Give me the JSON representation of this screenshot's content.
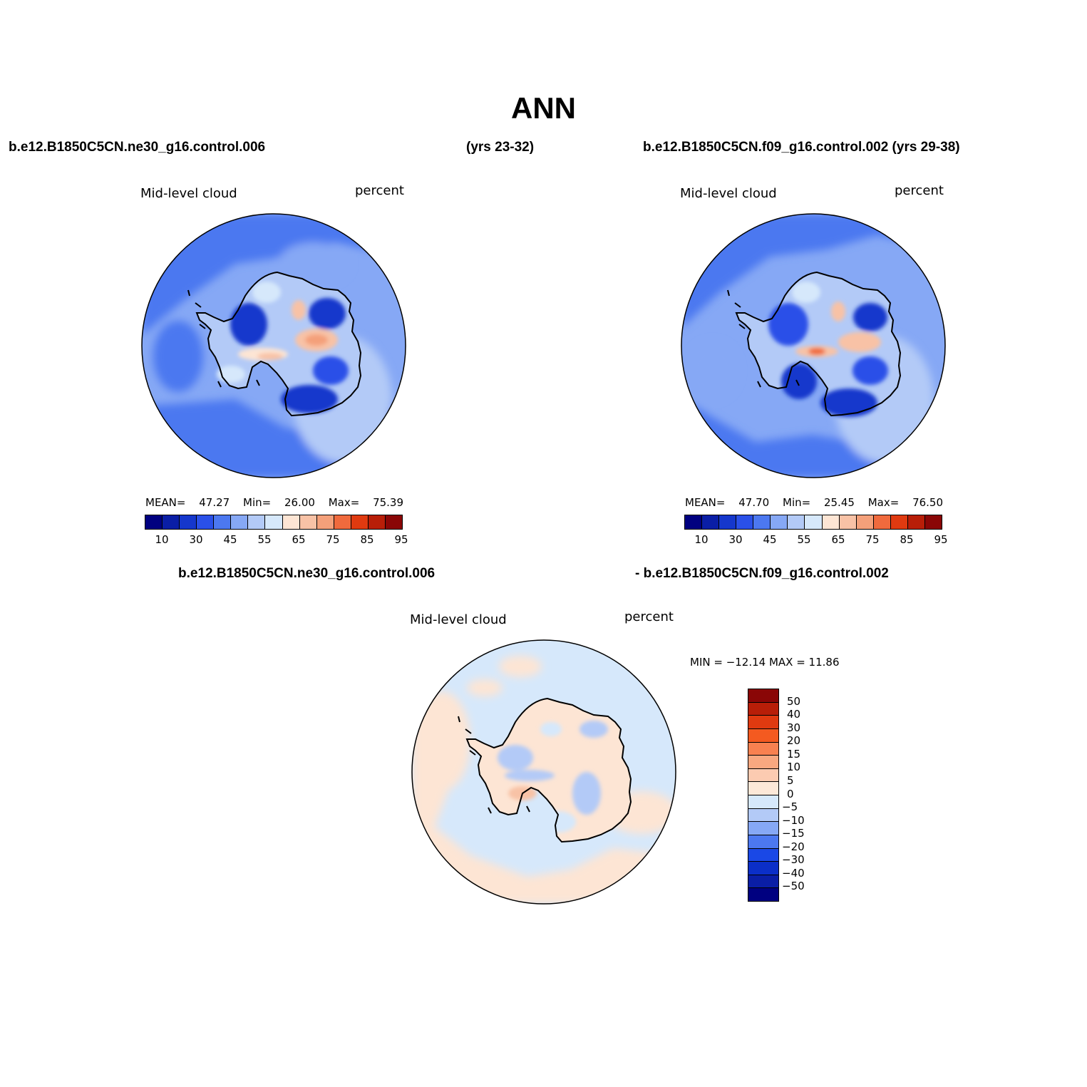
{
  "title": "ANN",
  "header": {
    "left_case": "b.e12.B1850C5CN.ne30_g16.control.006",
    "left_years": "(yrs 23-32)",
    "right_case": "b.e12.B1850C5CN.f09_g16.control.002 (yrs 29-38)",
    "diff_case_a": "b.e12.B1850C5CN.ne30_g16.control.006",
    "diff_case_b": "- b.e12.B1850C5CN.f09_g16.control.002"
  },
  "panels": {
    "left": {
      "variable": "Mid-level cloud",
      "units": "percent",
      "mean_label": "MEAN=",
      "mean": "47.27",
      "min_label": "Min=",
      "min": "26.00",
      "max_label": "Max=",
      "max": "75.39"
    },
    "right": {
      "variable": "Mid-level cloud",
      "units": "percent",
      "mean_label": "MEAN=",
      "mean": "47.70",
      "min_label": "Min=",
      "min": "25.45",
      "max_label": "Max=",
      "max": "76.50"
    },
    "diff": {
      "variable": "Mid-level cloud",
      "units": "percent",
      "minmax_text": "MIN = −12.14  MAX =   11.86"
    }
  },
  "colorbars": {
    "field": {
      "colors": [
        "#000080",
        "#0a1ea6",
        "#1537cc",
        "#2a50e8",
        "#4c78f0",
        "#86a8f5",
        "#b3caf7",
        "#d6e8fb",
        "#fde5d4",
        "#f8c2a6",
        "#f4a07a",
        "#f06a3d",
        "#e03a10",
        "#b81e08",
        "#8a0606"
      ],
      "tick_labels": [
        "10",
        "30",
        "45",
        "55",
        "65",
        "75",
        "85",
        "95"
      ]
    },
    "diff": {
      "colors": [
        "#8a0606",
        "#b81e08",
        "#e03a10",
        "#f45a20",
        "#f88150",
        "#f8a880",
        "#fccbb1",
        "#fde8d8",
        "#d6e8fb",
        "#b3caf7",
        "#86a8f5",
        "#4c78f0",
        "#1a48e6",
        "#0b2fc8",
        "#0a1ea6",
        "#000080"
      ],
      "tick_labels": [
        "50",
        "40",
        "30",
        "20",
        "15",
        "10",
        "5",
        "0",
        "−5",
        "−10",
        "−15",
        "−20",
        "−30",
        "−40",
        "−50"
      ]
    }
  }
}
